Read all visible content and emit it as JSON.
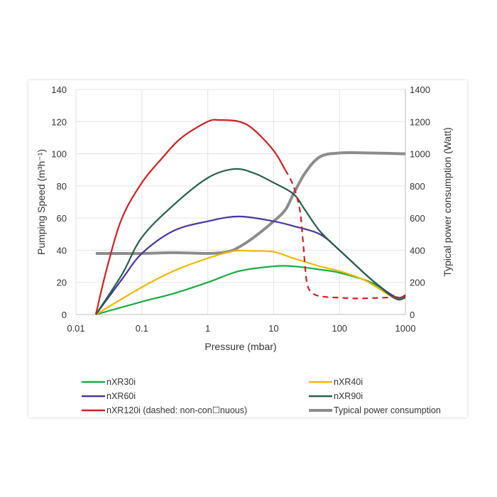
{
  "chart_data": {
    "type": "line",
    "xlabel": "Pressure (mbar)",
    "ylabel": "Pumping Speed (m³h⁻¹)",
    "y2label": "Typical power consumption (Watt)",
    "xscale": "log",
    "xlim": [
      0.01,
      1000
    ],
    "ylim": [
      0,
      140
    ],
    "y2lim": [
      0,
      1400
    ],
    "xticks": [
      "0.01",
      "0.1",
      "1",
      "10",
      "100",
      "1000"
    ],
    "yticks": [
      "0",
      "20",
      "40",
      "60",
      "80",
      "100",
      "120",
      "140"
    ],
    "y2ticks": [
      "0",
      "200",
      "400",
      "600",
      "800",
      "1000",
      "1200",
      "1400"
    ],
    "grid": true,
    "legend_position": "bottom",
    "series": [
      {
        "name": "nXR30i",
        "color": "#1aab40",
        "axis": "left",
        "x": [
          0.02,
          0.1,
          0.3,
          1,
          3,
          10,
          20,
          50,
          100,
          300,
          700,
          1000
        ],
        "y": [
          0,
          8,
          13,
          20,
          27,
          30,
          30,
          28,
          26,
          20,
          11,
          11
        ]
      },
      {
        "name": "nXR40i",
        "color": "#f2b800",
        "axis": "left",
        "x": [
          0.02,
          0.1,
          0.3,
          1,
          2.5,
          5,
          10,
          20,
          50,
          100,
          250,
          700,
          1000
        ],
        "y": [
          0,
          17,
          27,
          35,
          39.5,
          39.5,
          39,
          35,
          30,
          27,
          21,
          10,
          11
        ]
      },
      {
        "name": "nXR60i",
        "color": "#4b35a0",
        "axis": "left",
        "x": [
          0.02,
          0.05,
          0.1,
          0.3,
          1,
          3,
          10,
          20,
          50,
          100,
          300,
          700,
          1000
        ],
        "y": [
          0,
          22,
          38,
          52,
          58,
          61,
          58,
          55,
          50,
          40,
          22,
          11,
          12
        ]
      },
      {
        "name": "nXR90i",
        "color": "#265e4a",
        "axis": "left",
        "x": [
          0.02,
          0.05,
          0.1,
          0.3,
          1,
          2.5,
          5,
          10,
          20,
          30,
          50,
          100,
          300,
          700,
          1000
        ],
        "y": [
          0,
          25,
          48,
          68,
          85,
          90.5,
          88,
          82,
          75,
          65,
          52,
          40,
          22,
          10,
          10.5
        ]
      },
      {
        "name": "nXR120i (dashed: non-con☐nuous)",
        "color": "#cc2222",
        "axis": "left",
        "x": [
          0.02,
          0.03,
          0.05,
          0.1,
          0.2,
          0.4,
          1,
          1.5,
          3,
          5,
          10,
          15
        ],
        "y": [
          0,
          30,
          60,
          82,
          97,
          110,
          120,
          121,
          120,
          115,
          102,
          90
        ],
        "dashed_x": [
          15,
          20,
          25,
          28,
          32,
          40,
          60,
          100,
          200,
          1000
        ],
        "dashed_y": [
          90,
          80,
          65,
          45,
          20,
          13,
          11,
          10.5,
          10,
          11
        ]
      },
      {
        "name": "Typical power consumption",
        "color": "#8c8c8c",
        "axis": "right",
        "x": [
          0.02,
          0.1,
          0.3,
          1,
          2,
          3,
          5,
          10,
          15,
          20,
          30,
          50,
          100,
          300,
          1000
        ],
        "y": [
          380,
          380,
          385,
          380,
          390,
          420,
          480,
          580,
          650,
          750,
          880,
          980,
          1005,
          1005,
          1000
        ]
      }
    ]
  }
}
